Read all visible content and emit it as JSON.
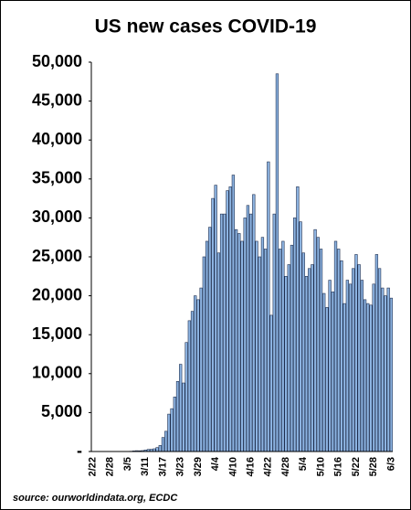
{
  "chart_data": {
    "type": "bar",
    "title": "US new cases  COVID-19",
    "source": "source: ourworldindata.org, ECDC",
    "categories": [
      "2/22",
      null,
      null,
      null,
      null,
      null,
      "2/28",
      null,
      null,
      null,
      null,
      null,
      "3/5",
      null,
      null,
      null,
      null,
      null,
      "3/11",
      null,
      null,
      null,
      null,
      null,
      "3/17",
      null,
      null,
      null,
      null,
      null,
      "3/23",
      null,
      null,
      null,
      null,
      null,
      "3/29",
      null,
      null,
      null,
      null,
      null,
      "4/4",
      null,
      null,
      null,
      null,
      null,
      "4/10",
      null,
      null,
      null,
      null,
      null,
      "4/16",
      null,
      null,
      null,
      null,
      null,
      "4/22",
      null,
      null,
      null,
      null,
      null,
      "4/28",
      null,
      null,
      null,
      null,
      null,
      "5/4",
      null,
      null,
      null,
      null,
      null,
      "5/10",
      null,
      null,
      null,
      null,
      null,
      "5/16",
      null,
      null,
      null,
      null,
      null,
      "5/22",
      null,
      null,
      null,
      null,
      null,
      "5/28",
      null,
      null,
      null,
      null,
      null,
      "6/3"
    ],
    "values": [
      0,
      0,
      1,
      0,
      0,
      1,
      1,
      3,
      6,
      3,
      20,
      14,
      22,
      34,
      74,
      105,
      95,
      121,
      200,
      271,
      287,
      351,
      511,
      777,
      1800,
      2600,
      4800,
      5500,
      7000,
      9000,
      11200,
      8800,
      14000,
      16800,
      18000,
      20000,
      19500,
      21000,
      25000,
      27000,
      28800,
      32500,
      34200,
      25500,
      30500,
      30500,
      33500,
      34000,
      35500,
      28500,
      28000,
      27000,
      30000,
      31600,
      30500,
      33000,
      27000,
      25000,
      27500,
      26000,
      37200,
      17500,
      30500,
      48500,
      26000,
      27000,
      22500,
      24000,
      26500,
      30000,
      34000,
      29500,
      25500,
      22500,
      23500,
      24000,
      28500,
      27500,
      26000,
      20300,
      18500,
      22000,
      20500,
      27000,
      26000,
      24500,
      19000,
      22000,
      21500,
      23500,
      25300,
      24000,
      22000,
      19500,
      19000,
      18800,
      21500,
      25300,
      23500,
      21000,
      20000,
      21000,
      19700
    ],
    "color": "#8db4e2",
    "ylim": [
      0,
      50000
    ],
    "yticks": [
      {
        "value": 0,
        "label": "-"
      },
      {
        "value": 5000,
        "label": "5,000"
      },
      {
        "value": 10000,
        "label": "10,000"
      },
      {
        "value": 15000,
        "label": "15,000"
      },
      {
        "value": 20000,
        "label": "20,000"
      },
      {
        "value": 25000,
        "label": "25,000"
      },
      {
        "value": 30000,
        "label": "30,000"
      },
      {
        "value": 35000,
        "label": "35,000"
      },
      {
        "value": 40000,
        "label": "40,000"
      },
      {
        "value": 45000,
        "label": "45,000"
      },
      {
        "value": 50000,
        "label": "50,000"
      }
    ]
  }
}
